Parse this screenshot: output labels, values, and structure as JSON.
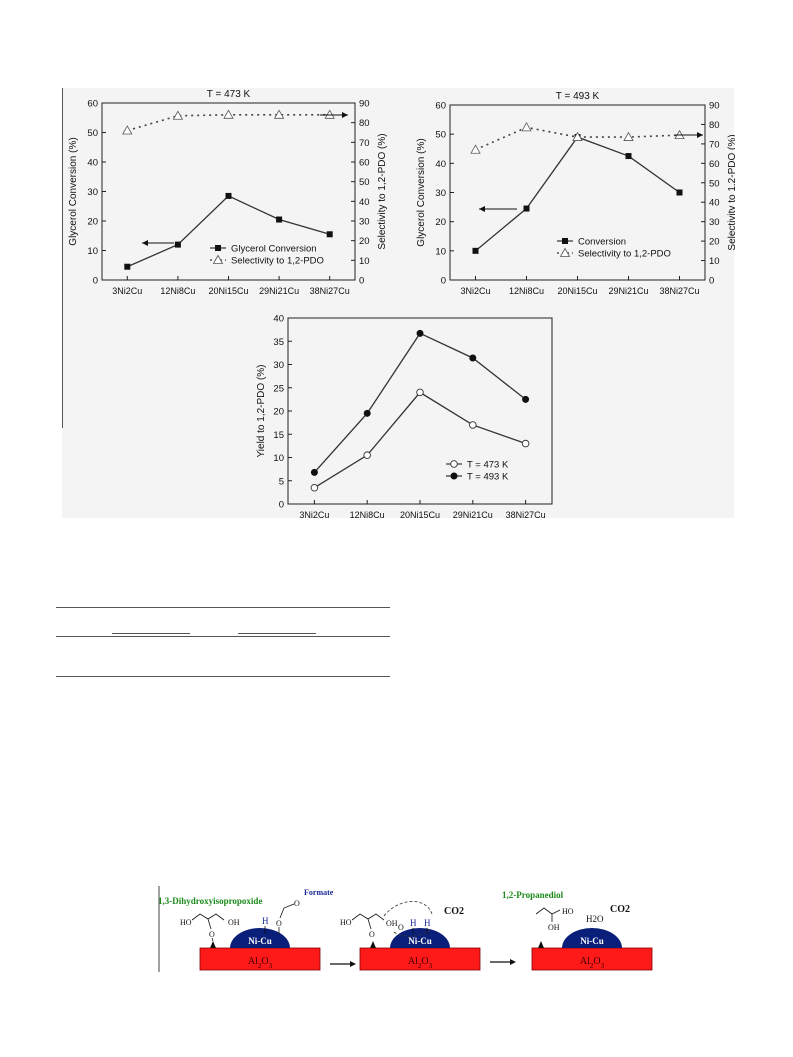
{
  "figure": {
    "chart_data": [
      {
        "type": "line",
        "title": "T = 473 K",
        "categories": [
          "3Ni2Cu",
          "12Ni8Cu",
          "20Ni15Cu",
          "29Ni21Cu",
          "38Ni27Cu"
        ],
        "ylabel": "Glycerol Conversion (%)",
        "y2label": "Selectivity to 1,2-PDO (%)",
        "ylim": [
          0,
          60
        ],
        "y2lim": [
          0,
          90
        ],
        "yticks": [
          "0",
          "10",
          "20",
          "30",
          "40",
          "50",
          "60"
        ],
        "y2ticks": [
          "0",
          "10",
          "20",
          "30",
          "40",
          "50",
          "60",
          "70",
          "80",
          "90"
        ],
        "legend_position": "bottom-right",
        "series": [
          {
            "name": "Glycerol Conversion",
            "axis": "left",
            "marker": "filled-square",
            "style": "solid",
            "values": [
              4.5,
              12,
              28.5,
              20.5,
              15.5
            ]
          },
          {
            "name": "Selectivity to 1,2-PDO",
            "axis": "right",
            "marker": "open-triangle",
            "style": "dotted",
            "values": [
              76,
              83.5,
              84,
              84,
              84
            ]
          }
        ]
      },
      {
        "type": "line",
        "title": "T = 493 K",
        "categories": [
          "3Ni2Cu",
          "12Ni8Cu",
          "20Ni15Cu",
          "29Ni21Cu",
          "38Ni27Cu"
        ],
        "ylabel": "Glycerol Conversion (%)",
        "y2label": "Selectivity to 1,2-PDO (%)",
        "ylim": [
          0,
          60
        ],
        "y2lim": [
          0,
          90
        ],
        "yticks": [
          "0",
          "10",
          "20",
          "30",
          "40",
          "50",
          "60"
        ],
        "y2ticks": [
          "0",
          "10",
          "20",
          "30",
          "40",
          "50",
          "60",
          "70",
          "80",
          "90"
        ],
        "legend_position": "bottom-right",
        "series": [
          {
            "name": "Conversion",
            "axis": "left",
            "marker": "filled-square",
            "style": "solid",
            "values": [
              10,
              24.5,
              49,
              42.5,
              30
            ]
          },
          {
            "name": "Selectivity to 1,2-PDO",
            "axis": "right",
            "marker": "open-triangle",
            "style": "dotted",
            "values": [
              67,
              78.5,
              73.5,
              73.5,
              74.5
            ]
          }
        ]
      },
      {
        "type": "line",
        "title": "",
        "categories": [
          "3Ni2Cu",
          "12Ni8Cu",
          "20Ni15Cu",
          "29Ni21Cu",
          "38Ni27Cu"
        ],
        "ylabel": "Yield to 1,2-PDO (%)",
        "ylim": [
          0,
          40
        ],
        "yticks": [
          "0",
          "5",
          "10",
          "15",
          "20",
          "25",
          "30",
          "35",
          "40"
        ],
        "legend_position": "bottom-right",
        "series": [
          {
            "name": "T = 473 K",
            "marker": "open-circle",
            "style": "solid",
            "values": [
              3.5,
              10.5,
              24,
              17,
              13
            ]
          },
          {
            "name": "T = 493 K",
            "marker": "filled-circle",
            "style": "solid",
            "values": [
              6.8,
              19.5,
              36.7,
              31.4,
              22.5
            ]
          }
        ]
      }
    ]
  },
  "scheme": {
    "step1": {
      "label": "1,3-Dihydroxyisopropoxide",
      "label2": "Formate",
      "ho1": "HO",
      "oh1": "OH",
      "o1": "O",
      "h": "H",
      "o2": "O",
      "o3": "O",
      "cluster": "Ni-Cu",
      "support": "Al2O3"
    },
    "step2": {
      "ho": "HO",
      "o": "O",
      "oh": "OH",
      "o2": "O",
      "h1": "H",
      "h2": "H",
      "co2": "CO2",
      "cluster": "Ni-Cu",
      "support": "Al2O3"
    },
    "step3": {
      "label": "1,2-Propanediol",
      "ho": "HO",
      "oh": "OH",
      "h2o": "H2O",
      "co2": "CO2",
      "cluster": "Ni-Cu",
      "support": "Al2O3"
    },
    "colors": {
      "support": "#ff1a1a",
      "cluster": "#0a1f7a",
      "label_green": "#1a8a1a",
      "label_blue": "#1a2a9a"
    }
  }
}
